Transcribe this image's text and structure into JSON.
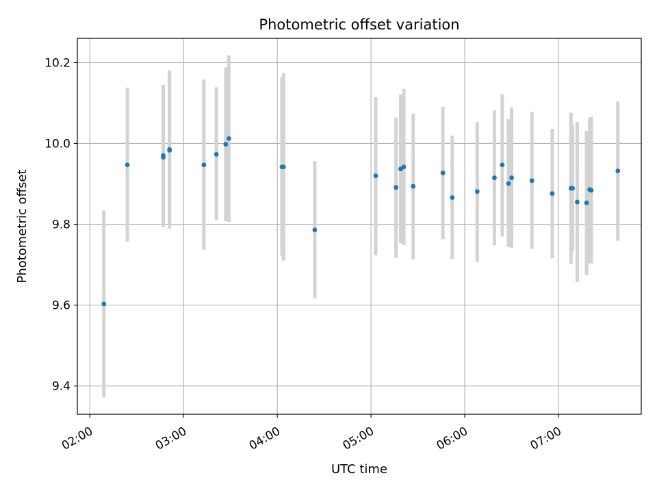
{
  "chart_data": {
    "type": "scatter",
    "title": "Photometric offset variation",
    "xlabel": "UTC time",
    "ylabel": "Photometric offset",
    "x_unit": "time of day (UTC)",
    "xlim": [
      "01:52",
      "07:53"
    ],
    "ylim": [
      9.33,
      10.26
    ],
    "x_ticks": [
      "02:00",
      "03:00",
      "04:00",
      "05:00",
      "06:00",
      "07:00"
    ],
    "y_ticks": [
      9.4,
      9.6,
      9.8,
      10.0,
      10.2
    ],
    "grid": true,
    "legend": "none",
    "colors": {
      "point": "#1f77b4",
      "errorbar": "#d3d3d3",
      "grid": "#b0b0b0"
    },
    "points": [
      {
        "x": "02:09",
        "y": 9.603,
        "ylo": 9.372,
        "yhi": 9.834
      },
      {
        "x": "02:24",
        "y": 9.947,
        "ylo": 9.757,
        "yhi": 10.138
      },
      {
        "x": "02:47",
        "y": 9.97,
        "ylo": 9.793,
        "yhi": 10.145
      },
      {
        "x": "02:47",
        "y": 9.966,
        "ylo": 9.793,
        "yhi": 10.141
      },
      {
        "x": "02:51",
        "y": 9.985,
        "ylo": 9.789,
        "yhi": 10.181
      },
      {
        "x": "02:51",
        "y": 9.983,
        "ylo": 9.791,
        "yhi": 10.175
      },
      {
        "x": "03:13",
        "y": 9.947,
        "ylo": 9.737,
        "yhi": 10.158
      },
      {
        "x": "03:21",
        "y": 9.973,
        "ylo": 9.81,
        "yhi": 10.139
      },
      {
        "x": "03:27",
        "y": 9.998,
        "ylo": 9.808,
        "yhi": 10.188
      },
      {
        "x": "03:29",
        "y": 10.012,
        "ylo": 9.806,
        "yhi": 10.218
      },
      {
        "x": "04:03",
        "y": 9.942,
        "ylo": 9.722,
        "yhi": 10.163
      },
      {
        "x": "04:04",
        "y": 9.942,
        "ylo": 9.71,
        "yhi": 10.174
      },
      {
        "x": "04:24",
        "y": 9.786,
        "ylo": 9.617,
        "yhi": 9.956
      },
      {
        "x": "05:03",
        "y": 9.92,
        "ylo": 9.723,
        "yhi": 10.115
      },
      {
        "x": "05:16",
        "y": 9.891,
        "ylo": 9.717,
        "yhi": 10.064
      },
      {
        "x": "05:19",
        "y": 9.937,
        "ylo": 9.753,
        "yhi": 10.121
      },
      {
        "x": "05:21",
        "y": 9.942,
        "ylo": 9.749,
        "yhi": 10.135
      },
      {
        "x": "05:27",
        "y": 9.894,
        "ylo": 9.713,
        "yhi": 10.074
      },
      {
        "x": "05:46",
        "y": 9.927,
        "ylo": 9.763,
        "yhi": 10.091
      },
      {
        "x": "05:52",
        "y": 9.866,
        "ylo": 9.714,
        "yhi": 10.019
      },
      {
        "x": "06:08",
        "y": 9.881,
        "ylo": 9.707,
        "yhi": 10.053
      },
      {
        "x": "06:19",
        "y": 9.915,
        "ylo": 9.748,
        "yhi": 10.082
      },
      {
        "x": "06:24",
        "y": 9.947,
        "ylo": 9.77,
        "yhi": 10.122
      },
      {
        "x": "06:28",
        "y": 9.901,
        "ylo": 9.744,
        "yhi": 10.06
      },
      {
        "x": "06:30",
        "y": 9.915,
        "ylo": 9.742,
        "yhi": 10.089
      },
      {
        "x": "06:43",
        "y": 9.908,
        "ylo": 9.739,
        "yhi": 10.078
      },
      {
        "x": "06:56",
        "y": 9.876,
        "ylo": 9.716,
        "yhi": 10.036
      },
      {
        "x": "07:08",
        "y": 9.889,
        "ylo": 9.702,
        "yhi": 10.076
      },
      {
        "x": "07:09",
        "y": 9.889,
        "ylo": 9.733,
        "yhi": 10.046
      },
      {
        "x": "07:12",
        "y": 9.855,
        "ylo": 9.657,
        "yhi": 10.053
      },
      {
        "x": "07:18",
        "y": 9.853,
        "ylo": 9.674,
        "yhi": 10.031
      },
      {
        "x": "07:20",
        "y": 9.886,
        "ylo": 9.703,
        "yhi": 10.063
      },
      {
        "x": "07:21",
        "y": 9.884,
        "ylo": 9.703,
        "yhi": 10.066
      },
      {
        "x": "07:38",
        "y": 9.932,
        "ylo": 9.759,
        "yhi": 10.104
      }
    ]
  }
}
